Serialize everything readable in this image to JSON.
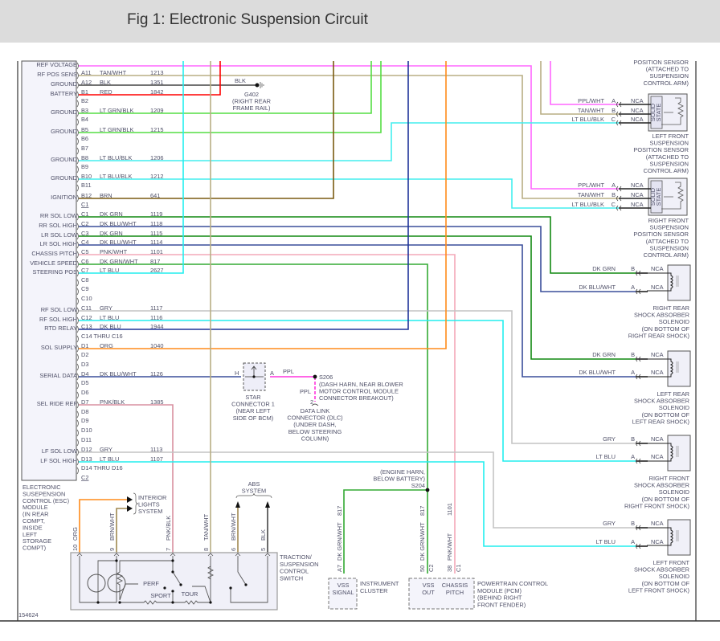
{
  "title": "Fig 1: Electronic Suspension Circuit",
  "figure_number": "154624",
  "wire_colors": {
    "PPL/WHT": "#ff66ff",
    "TAN/WHT": "#b8ad84",
    "BLK": "#444444",
    "RED": "#ff0000",
    "LT GRN/BLK": "#55dd44",
    "LT BLU/BLK": "#44eeee",
    "LT BLU/BLK2": "#88dddd",
    "BRN": "#7a5a10",
    "DK GRN": "#118811",
    "DK BLU/WHT": "#3a4e9a",
    "PNK/WHT": "#f4a8b8",
    "DK GRN/WHT": "#33aa33",
    "LT BLU": "#22eeee",
    "GRY": "#c4c4c4",
    "DK BLU": "#1f3399",
    "ORG": "#ff8c1a",
    "PNK/BLK": "#d890a0",
    "PPL": "#ff33dd",
    "BRN/WHT": "#a08850"
  },
  "esc_module": {
    "label_lines": [
      "ELECTRONIC",
      "SUSEPENSION",
      "CONTROL (ESC)",
      "MODULE",
      "(IN REAR",
      "COMPT,",
      "INSIDE",
      "LEFT",
      "STORAGE",
      "COMPT)"
    ],
    "pins": [
      {
        "pin": "",
        "color": "",
        "circuit": "",
        "function": "REF VOLTAGE"
      },
      {
        "pin": "A11",
        "color": "TAN/WHT",
        "circuit": "1213",
        "function": "RF POS SENS"
      },
      {
        "pin": "A12",
        "color": "BLK",
        "circuit": "1351",
        "function": "GROUND"
      },
      {
        "pin": "B1",
        "color": "RED",
        "circuit": "1842",
        "function": "BATTERY"
      },
      {
        "pin": "B2",
        "color": "",
        "circuit": "",
        "function": ""
      },
      {
        "pin": "B3",
        "color": "LT GRN/BLK",
        "circuit": "1209",
        "function": "GROUND"
      },
      {
        "pin": "B4",
        "color": "",
        "circuit": "",
        "function": ""
      },
      {
        "pin": "B5",
        "color": "LT GRN/BLK",
        "circuit": "1215",
        "function": "GROUND"
      },
      {
        "pin": "B6",
        "color": "",
        "circuit": "",
        "function": ""
      },
      {
        "pin": "B7",
        "color": "",
        "circuit": "",
        "function": ""
      },
      {
        "pin": "B8",
        "color": "LT BLU/BLK",
        "circuit": "1206",
        "function": "GROUND"
      },
      {
        "pin": "B9",
        "color": "",
        "circuit": "",
        "function": ""
      },
      {
        "pin": "B10",
        "color": "LT BLU/BLK",
        "circuit": "1212",
        "function": "GROUND"
      },
      {
        "pin": "B11",
        "color": "",
        "circuit": "",
        "function": ""
      },
      {
        "pin": "B12",
        "color": "BRN",
        "circuit": "641",
        "function": "IGNITION"
      },
      {
        "pin": "C1",
        "color": "",
        "circuit": "",
        "function": "",
        "header": true
      },
      {
        "pin": "C1",
        "color": "DK GRN",
        "circuit": "1119",
        "function": "RR SOL LOW"
      },
      {
        "pin": "C2",
        "color": "DK BLU/WHT",
        "circuit": "1118",
        "function": "RR SOL HIGH"
      },
      {
        "pin": "C3",
        "color": "DK GRN",
        "circuit": "1115",
        "function": "LR SOL LOW"
      },
      {
        "pin": "C4",
        "color": "DK BLU/WHT",
        "circuit": "1114",
        "function": "LR SOL HIGH"
      },
      {
        "pin": "C5",
        "color": "PNK/WHT",
        "circuit": "1101",
        "function": "CHASSIS PITCH"
      },
      {
        "pin": "C6",
        "color": "DK GRN/WHT",
        "circuit": "817",
        "function": "VEHICLE SPEED"
      },
      {
        "pin": "C7",
        "color": "LT BLU",
        "circuit": "2627",
        "function": "STEERING POS"
      },
      {
        "pin": "C8",
        "color": "",
        "circuit": "",
        "function": ""
      },
      {
        "pin": "C9",
        "color": "",
        "circuit": "",
        "function": ""
      },
      {
        "pin": "C10",
        "color": "",
        "circuit": "",
        "function": ""
      },
      {
        "pin": "C11",
        "color": "GRY",
        "circuit": "1117",
        "function": "RF SOL LOW"
      },
      {
        "pin": "C12",
        "color": "LT BLU",
        "circuit": "1116",
        "function": "RF SOL HIGH"
      },
      {
        "pin": "C13",
        "color": "DK BLU",
        "circuit": "1944",
        "function": "RTD RELAY"
      },
      {
        "pin": "C14 THRU C16",
        "color": "",
        "circuit": "",
        "function": ""
      },
      {
        "pin": "D1",
        "color": "ORG",
        "circuit": "1040",
        "function": "SOL SUPPLY"
      },
      {
        "pin": "D2",
        "color": "",
        "circuit": "",
        "function": ""
      },
      {
        "pin": "D3",
        "color": "",
        "circuit": "",
        "function": ""
      },
      {
        "pin": "D4",
        "color": "DK BLU/WHT",
        "circuit": "1126",
        "function": "SERIAL DATA"
      },
      {
        "pin": "D5",
        "color": "",
        "circuit": "",
        "function": ""
      },
      {
        "pin": "D6",
        "color": "",
        "circuit": "",
        "function": ""
      },
      {
        "pin": "D7",
        "color": "PNK/BLK",
        "circuit": "1385",
        "function": "SEL RIDE REF"
      },
      {
        "pin": "D8",
        "color": "",
        "circuit": "",
        "function": ""
      },
      {
        "pin": "D9",
        "color": "",
        "circuit": "",
        "function": ""
      },
      {
        "pin": "D10",
        "color": "",
        "circuit": "",
        "function": ""
      },
      {
        "pin": "D11",
        "color": "",
        "circuit": "",
        "function": ""
      },
      {
        "pin": "D12",
        "color": "GRY",
        "circuit": "1113",
        "function": "LF SOL LOW"
      },
      {
        "pin": "D13",
        "color": "LT BLU",
        "circuit": "1107",
        "function": "LF SOL HIGH"
      },
      {
        "pin": "D14 THRU D16",
        "color": "",
        "circuit": "",
        "function": ""
      },
      {
        "pin": "C2",
        "color": "",
        "circuit": "",
        "function": "",
        "header": true
      }
    ]
  },
  "ground": {
    "wire": "BLK",
    "id": "G402",
    "lines": [
      "(RIGHT REAR",
      "FRAME RAIL)"
    ]
  },
  "sensors": [
    {
      "pins": [
        {
          "p": "A",
          "c": "PPL/WHT"
        },
        {
          "p": "B",
          "c": "TAN/WHT"
        },
        {
          "p": "C",
          "c": "LT BLU/BLK"
        }
      ],
      "inner": [
        "SOLID",
        "STATE"
      ],
      "nca": "NCA",
      "above": [
        "POSITION SENSOR",
        "(ATTACHED TO",
        "SUSPENSION",
        "CONTROL ARM)"
      ],
      "below": [
        "LEFT FRONT",
        "SUSPENSION",
        "POSITION SENSOR",
        "(ATTACHED TO",
        "SUSPENSION",
        "CONTROL ARM)"
      ]
    },
    {
      "pins": [
        {
          "p": "A",
          "c": "PPL/WHT"
        },
        {
          "p": "B",
          "c": "TAN/WHT"
        },
        {
          "p": "C",
          "c": "LT BLU/BLK"
        }
      ],
      "inner": [
        "SOLID",
        "STATE"
      ],
      "nca": "NCA",
      "below": [
        "RIGHT FRONT",
        "SUSPENSION",
        "POSITION SENSOR",
        "(ATTACHED TO",
        "SUSPENSION",
        "CONTROL ARM)"
      ]
    }
  ],
  "solenoids": [
    {
      "pins": [
        {
          "p": "B",
          "c": "DK GRN"
        },
        {
          "p": "A",
          "c": "DK BLU/WHT"
        }
      ],
      "nca": "NCA",
      "below": [
        "RIGHT REAR",
        "SHOCK ABSORBER",
        "SOLENOID",
        "(ON BOTTOM OF",
        "RIGHT REAR SHOCK)"
      ]
    },
    {
      "pins": [
        {
          "p": "B",
          "c": "DK GRN"
        },
        {
          "p": "A",
          "c": "DK BLU/WHT"
        }
      ],
      "nca": "NCA",
      "below": [
        "LEFT REAR",
        "SHOCK ABSORBER",
        "SOLENOID",
        "(ON BOTTOM OF",
        "LEFT REAR SHOCK)"
      ]
    },
    {
      "pins": [
        {
          "p": "B",
          "c": "GRY"
        },
        {
          "p": "A",
          "c": "LT BLU"
        }
      ],
      "nca": "NCA",
      "below": [
        "RIGHT FRONT",
        "SHOCK ABSORBER",
        "SOLENOID",
        "(ON BOTTOM OF",
        "RIGHT FRONT SHOCK)"
      ]
    },
    {
      "pins": [
        {
          "p": "B",
          "c": "GRY"
        },
        {
          "p": "A",
          "c": "LT BLU"
        }
      ],
      "nca": "NCA",
      "below": [
        "LEFT FRONT",
        "SHOCK ABSORBER",
        "SOLENOID",
        "(ON BOTTOM OF",
        "LEFT FRONT SHOCK)"
      ]
    }
  ],
  "star_connector": {
    "pin_in": "H",
    "pin_out": "A",
    "wire_out": "PPL",
    "lines": [
      "STAR",
      "CONNECTOR 1",
      "(NEAR LEFT",
      "SIDE OF BCM)"
    ]
  },
  "splice_s206": {
    "id": "S206",
    "lines": [
      "(DASH HARN, NEAR BLOWER",
      "MOTOR CONTROL MODULE",
      "CONNECTOR BREAKOUT)"
    ],
    "wire": "PPL"
  },
  "dlc": {
    "pin": "2",
    "lines": [
      "DATA LINK",
      "CONNECTOR (DLC)",
      "(UNDER DASH,",
      "BELOW STEERING",
      "COLUMN)"
    ]
  },
  "splice_s204": {
    "id": "S204",
    "lines": [
      "(ENGINE HARN,",
      "BELOW BATTERY)"
    ]
  },
  "instrument_cluster": {
    "pin": "A7",
    "wire": "DK GRN/WHT",
    "circuit": "817",
    "inner": [
      "VSS",
      "SIGNAL"
    ],
    "lines": [
      "INSTRUMENT",
      "CLUSTER"
    ]
  },
  "pcm": {
    "pins": [
      {
        "pin": "50",
        "conn": "C2",
        "wire": "DK GRN/WHT",
        "circuit": "817",
        "inner": [
          "VSS",
          "OUT"
        ]
      },
      {
        "pin": "38",
        "conn": "C1",
        "wire": "PNK/WHT",
        "circuit": "1101",
        "inner": [
          "CHASSIS",
          "PITCH"
        ]
      }
    ],
    "lines": [
      "POWERTRAIN CONTROL",
      "MODULE (PCM)",
      "(BEHIND RIGHT",
      "FRONT FENDER)"
    ]
  },
  "interior_lights": {
    "lines": [
      "INTERIOR",
      "LIGHTS",
      "SYSTEM"
    ]
  },
  "abs": {
    "lines": [
      "ABS",
      "SYSTEM"
    ]
  },
  "switch": {
    "pins": [
      {
        "pin": "10",
        "wire": "ORG"
      },
      {
        "pin": "9",
        "wire": "BRN/WHT"
      },
      {
        "pin": "7",
        "wire": "PNK/BLK"
      },
      {
        "pin": "8",
        "wire": "TAN/WHT"
      },
      {
        "pin": "6",
        "wire": "BRN/WHT"
      },
      {
        "pin": "5",
        "wire": "BLK"
      }
    ],
    "modes": {
      "perf": "PERF",
      "sport": "SPORT",
      "tour": "TOUR"
    },
    "lines": [
      "TRACTION/",
      "SUSPENSION",
      "CONTROL",
      "SWITCH"
    ]
  }
}
